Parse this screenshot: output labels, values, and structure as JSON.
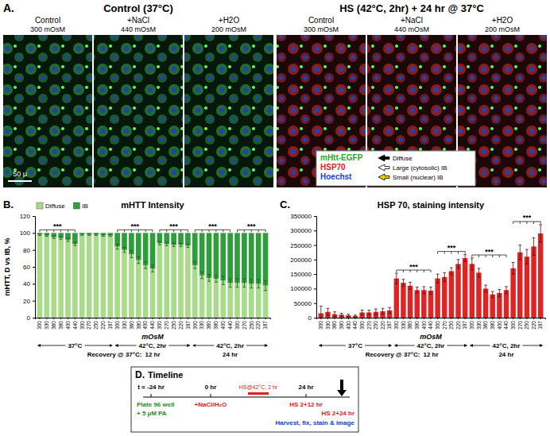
{
  "figure_labels": [
    "A.",
    "B.",
    "C.",
    "D."
  ],
  "panel_a": {
    "groups": [
      {
        "title": "Control (37°C)",
        "images": [
          {
            "label": "Control",
            "osmolality": "300 mOsM"
          },
          {
            "label": "+NaCl",
            "osmolality": "440 mOsM"
          },
          {
            "label": "+H2O",
            "osmolality": "200 mOsM"
          }
        ]
      },
      {
        "title": "HS (42°C, 2hr) + 24 hr @ 37°C",
        "images": [
          {
            "label": "Control",
            "osmolality": "300 mOsM"
          },
          {
            "label": "+NaCl",
            "osmolality": "440 mOsM"
          },
          {
            "label": "+H2O",
            "osmolality": "200 mOsM"
          }
        ]
      }
    ],
    "stains": [
      {
        "name": "mHtt-EGFP",
        "color": "#1fa81f"
      },
      {
        "name": "HSP70",
        "color": "#e02020"
      },
      {
        "name": "Hoechst",
        "color": "#2040e0"
      }
    ],
    "arrow_legend": [
      {
        "name": "Diffuse",
        "color": "#000000"
      },
      {
        "name": "Large (cytosolic) IB",
        "color": "#ffffff"
      },
      {
        "name": "Small (nuclear) IB",
        "color": "#f5d000"
      }
    ],
    "scale_bar": "50 µ"
  },
  "chart_data": [
    {
      "type": "bar",
      "stacked": true,
      "title": "mHTT Intensity",
      "ylabel": "mHTT, D vs IB, %",
      "xlabel": "mOsM",
      "categories": [
        300,
        330,
        360,
        380,
        400,
        440,
        300,
        270,
        250,
        220,
        187,
        300,
        330,
        360,
        380,
        400,
        440,
        300,
        270,
        250,
        220,
        187,
        300,
        330,
        360,
        380,
        400,
        440,
        300,
        270,
        250,
        220,
        187
      ],
      "series": [
        {
          "name": "Diffuse",
          "color": "#a9dc8a",
          "values": [
            98,
            97,
            95,
            94,
            92,
            87,
            98,
            98,
            98,
            97,
            97,
            84,
            80,
            75,
            68,
            62,
            58,
            88,
            87,
            86,
            86,
            85,
            62,
            50,
            47,
            46,
            44,
            41,
            41,
            41,
            40,
            40,
            38
          ],
          "errors": [
            1,
            1,
            1.5,
            1.5,
            2,
            2,
            1,
            1,
            1,
            1,
            1,
            3,
            3,
            4,
            4,
            4,
            4,
            2,
            2,
            2,
            2,
            2,
            4,
            4,
            4,
            4,
            5,
            5,
            5,
            5,
            5,
            5,
            6
          ]
        },
        {
          "name": "IB",
          "color": "#2e9e3a",
          "values": [
            2,
            3,
            5,
            6,
            8,
            13,
            2,
            2,
            2,
            3,
            3,
            16,
            20,
            25,
            32,
            38,
            42,
            12,
            13,
            14,
            14,
            15,
            38,
            50,
            53,
            54,
            56,
            59,
            59,
            59,
            60,
            60,
            62
          ]
        }
      ],
      "ylim": [
        0,
        120
      ],
      "yticks": [
        0,
        20,
        40,
        60,
        80,
        100,
        120
      ],
      "legend": "top-left",
      "significance": [
        "***",
        null,
        "***",
        "***",
        "***",
        "***"
      ],
      "group_labels": [
        "37°C",
        "42°C, 2hr",
        "42°C, 2hr"
      ],
      "recovery_label": "Recovery @ 37°C:",
      "recovery_times": [
        null,
        "12 hr",
        "24 hr"
      ]
    },
    {
      "type": "bar",
      "title": "HSP 70, staining intensity",
      "xlabel": "mOsM",
      "color": "#e02424",
      "categories": [
        300,
        330,
        360,
        380,
        400,
        440,
        300,
        270,
        250,
        220,
        187,
        300,
        330,
        360,
        380,
        400,
        440,
        300,
        270,
        250,
        220,
        187,
        300,
        330,
        360,
        380,
        400,
        440,
        300,
        270,
        250,
        220,
        187
      ],
      "values": [
        15000,
        20000,
        12000,
        10000,
        8000,
        6000,
        18000,
        18000,
        20000,
        22000,
        25000,
        135000,
        120000,
        110000,
        95000,
        95000,
        93000,
        135000,
        140000,
        160000,
        185000,
        205000,
        185000,
        155000,
        100000,
        80000,
        85000,
        95000,
        170000,
        225000,
        210000,
        245000,
        290000
      ],
      "errors": [
        25000,
        12000,
        8000,
        5000,
        4000,
        3000,
        8000,
        8000,
        10000,
        10000,
        10000,
        18000,
        12000,
        12000,
        10000,
        12000,
        12000,
        15000,
        15000,
        12000,
        15000,
        12000,
        20000,
        15000,
        12000,
        10000,
        12000,
        12000,
        20000,
        25000,
        25000,
        30000,
        30000
      ],
      "ylim": [
        0,
        350000
      ],
      "yticks": [
        0,
        50000,
        100000,
        150000,
        200000,
        250000,
        300000,
        350000
      ],
      "significance": [
        null,
        null,
        "***",
        "***",
        "***",
        "***"
      ],
      "group_labels": [
        "37°C",
        "42°C, 2hr",
        "42°C, 2hr"
      ],
      "recovery_label": "Recovery @ 37°C:",
      "recovery_times": [
        null,
        "12 hr",
        "24 hr"
      ]
    }
  ],
  "panel_d": {
    "title": "Timeline",
    "points": [
      {
        "label": "t = -24 hr",
        "notes": [
          "Plate 96 well",
          "+ 5 µM PA"
        ]
      },
      {
        "label": "0 hr",
        "notes": [
          "+NaCl/H₂O"
        ]
      },
      {
        "label": "24 hr",
        "notes": [
          "HS 2+12 hr"
        ]
      }
    ],
    "heat_shock": "HS@42°C, 2 hr",
    "final": {
      "label": "HS 2+24 hr",
      "note": "Harvest, fix, stain & image"
    }
  }
}
